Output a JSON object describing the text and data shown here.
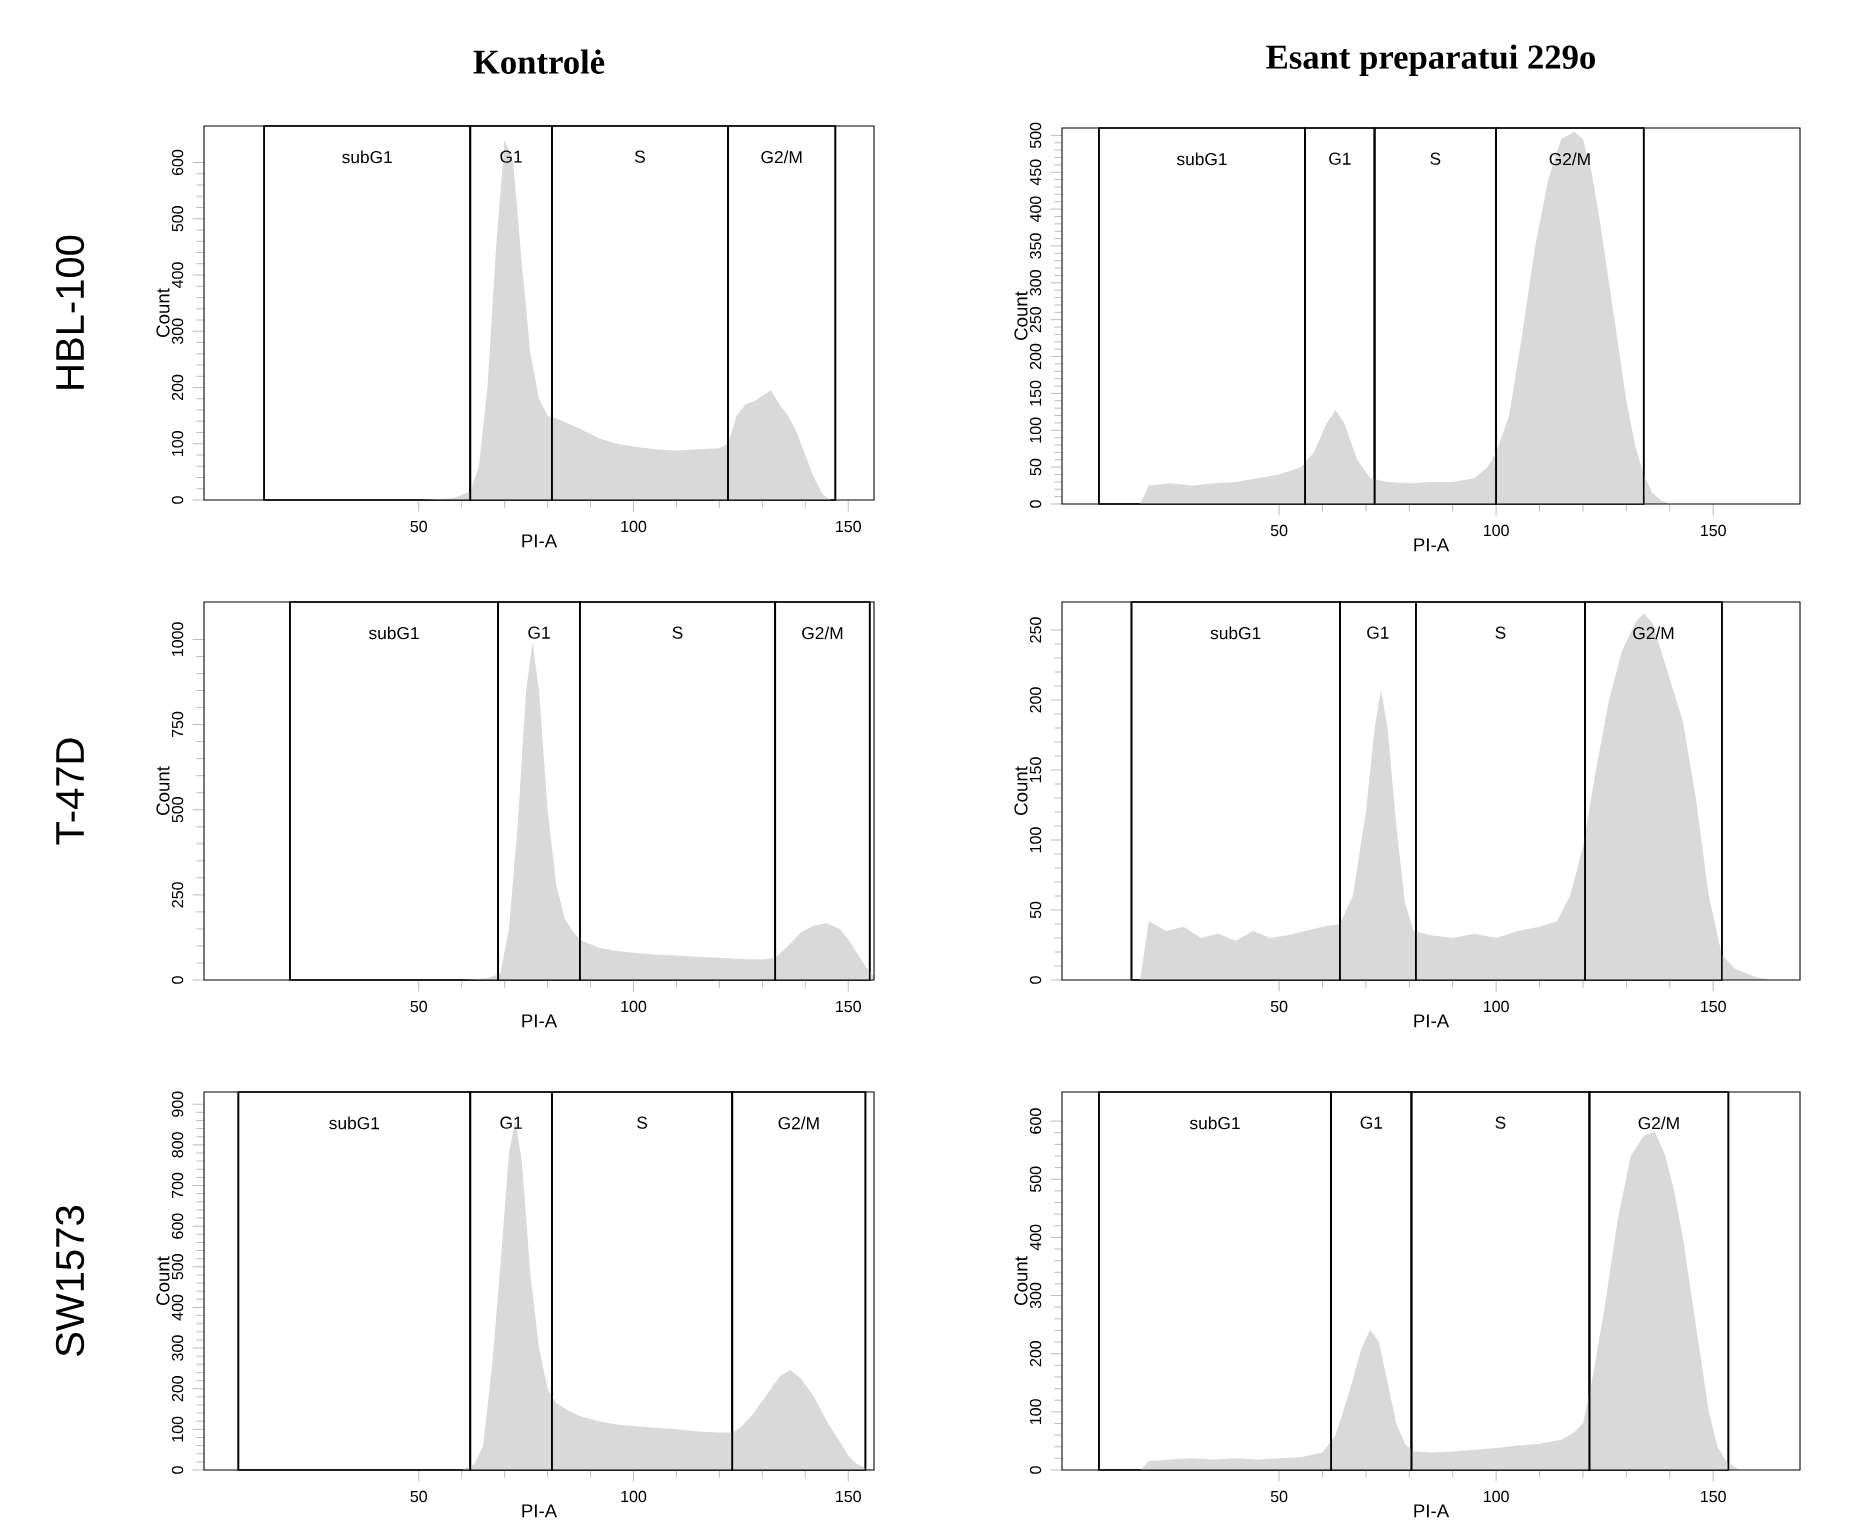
{
  "chart_data": [
    {
      "type": "area",
      "title": "Kontrolė",
      "annotations": [
        "HBL-100"
      ],
      "xlabel": "PI-A",
      "ylabel": "Count",
      "color": "#d9d9d9",
      "xlim": [
        0,
        156
      ],
      "ylim": [
        0,
        665
      ],
      "xticks": [
        50,
        100,
        150
      ],
      "yticks": [
        0,
        100,
        200,
        300,
        400,
        500,
        600
      ],
      "x": [
        50,
        58,
        62,
        64,
        66,
        68,
        70,
        72,
        74,
        76,
        78,
        80,
        82,
        85,
        88,
        92,
        96,
        100,
        105,
        110,
        115,
        120,
        122,
        124,
        126,
        128,
        130,
        132,
        134,
        136,
        138,
        140,
        142,
        144,
        146
      ],
      "values": [
        0,
        3,
        15,
        60,
        200,
        450,
        640,
        600,
        420,
        260,
        180,
        150,
        145,
        135,
        125,
        110,
        100,
        95,
        90,
        88,
        90,
        92,
        100,
        150,
        170,
        175,
        185,
        195,
        170,
        150,
        120,
        80,
        40,
        10,
        0
      ],
      "bands": [
        {
          "axis": "x",
          "from": 14,
          "to": 62,
          "label": "subG1",
          "color": "#ffffff"
        },
        {
          "axis": "x",
          "from": 62,
          "to": 81,
          "label": "G1",
          "color": "#ffffff"
        },
        {
          "axis": "x",
          "from": 81,
          "to": 122,
          "label": "S",
          "color": "#ffffff"
        },
        {
          "axis": "x",
          "from": 122,
          "to": 147,
          "label": "G2/M",
          "color": "#ffffff"
        }
      ]
    },
    {
      "type": "area",
      "title": "Esant preparatui 229o",
      "xlabel": "PI-A",
      "ylabel": "Count",
      "color": "#d9d9d9",
      "xlim": [
        0,
        170
      ],
      "ylim": [
        0,
        510
      ],
      "xticks": [
        50,
        100,
        150
      ],
      "yticks": [
        0,
        50,
        100,
        150,
        200,
        250,
        300,
        350,
        400,
        450,
        500
      ],
      "x": [
        18,
        20,
        25,
        30,
        35,
        40,
        45,
        50,
        55,
        58,
        61,
        63,
        65,
        68,
        71,
        75,
        80,
        85,
        90,
        95,
        98,
        100,
        103,
        106,
        109,
        112,
        115,
        118,
        120,
        122,
        124,
        126,
        128,
        130,
        132,
        134,
        136,
        138,
        140
      ],
      "values": [
        0,
        25,
        28,
        25,
        28,
        30,
        35,
        40,
        50,
        70,
        110,
        127,
        110,
        60,
        35,
        30,
        28,
        30,
        30,
        35,
        50,
        70,
        120,
        230,
        350,
        440,
        495,
        505,
        495,
        450,
        380,
        300,
        220,
        140,
        80,
        40,
        15,
        5,
        0
      ],
      "bands": [
        {
          "axis": "x",
          "from": 8.5,
          "to": 56,
          "label": "subG1"
        },
        {
          "axis": "x",
          "from": 56,
          "to": 72,
          "label": "G1"
        },
        {
          "axis": "x",
          "from": 72,
          "to": 100,
          "label": "S"
        },
        {
          "axis": "x",
          "from": 100,
          "to": 134,
          "label": "G2/M"
        }
      ]
    },
    {
      "type": "area",
      "annotations": [
        "T-47D"
      ],
      "xlabel": "PI-A",
      "ylabel": "Count",
      "color": "#d9d9d9",
      "xlim": [
        0,
        156
      ],
      "ylim": [
        0,
        1110
      ],
      "xticks": [
        50,
        100,
        150
      ],
      "yticks": [
        0,
        250,
        500,
        750,
        1000
      ],
      "x": [
        60,
        66,
        69,
        71,
        73,
        75,
        76.5,
        78,
        80,
        82,
        84,
        86,
        88,
        92,
        96,
        100,
        105,
        110,
        115,
        120,
        125,
        130,
        133,
        136,
        139,
        142,
        145,
        148,
        150,
        152,
        154,
        156
      ],
      "values": [
        0,
        5,
        20,
        150,
        450,
        850,
        990,
        850,
        500,
        280,
        180,
        140,
        115,
        95,
        85,
        80,
        75,
        72,
        68,
        65,
        62,
        60,
        65,
        100,
        140,
        160,
        167,
        150,
        120,
        80,
        40,
        10
      ],
      "bands": [
        {
          "axis": "x",
          "from": 20,
          "to": 68.5,
          "label": "subG1"
        },
        {
          "axis": "x",
          "from": 68.5,
          "to": 87.5,
          "label": "G1"
        },
        {
          "axis": "x",
          "from": 87.5,
          "to": 133,
          "label": "S"
        },
        {
          "axis": "x",
          "from": 133,
          "to": 155,
          "label": "G2/M"
        }
      ]
    },
    {
      "type": "area",
      "xlabel": "PI-A",
      "ylabel": "Count",
      "color": "#d9d9d9",
      "xlim": [
        0,
        170
      ],
      "ylim": [
        0,
        270
      ],
      "xticks": [
        50,
        100,
        150
      ],
      "yticks": [
        0,
        50,
        100,
        150,
        200,
        250
      ],
      "x": [
        18,
        20,
        24,
        28,
        32,
        36,
        40,
        44,
        48,
        52,
        56,
        60,
        64,
        67,
        70,
        72,
        73.5,
        75,
        77,
        79,
        81,
        85,
        90,
        95,
        100,
        105,
        110,
        114,
        117,
        120,
        123,
        126,
        129,
        132,
        134,
        136,
        138,
        140,
        143,
        146,
        149,
        152,
        155,
        160,
        163
      ],
      "values": [
        0,
        42,
        35,
        38,
        30,
        33,
        28,
        35,
        30,
        32,
        35,
        38,
        40,
        60,
        120,
        180,
        207,
        180,
        110,
        55,
        35,
        32,
        30,
        33,
        30,
        35,
        38,
        42,
        60,
        95,
        150,
        200,
        235,
        255,
        262,
        255,
        235,
        215,
        185,
        130,
        60,
        18,
        8,
        2,
        0
      ],
      "bands": [
        {
          "axis": "x",
          "from": 16,
          "to": 64,
          "label": "subG1"
        },
        {
          "axis": "x",
          "from": 64,
          "to": 81.5,
          "label": "G1"
        },
        {
          "axis": "x",
          "from": 81.5,
          "to": 120.5,
          "label": "S"
        },
        {
          "axis": "x",
          "from": 120.5,
          "to": 152,
          "label": "G2/M"
        }
      ]
    },
    {
      "type": "area",
      "annotations": [
        "SW1573"
      ],
      "xlabel": "PI-A",
      "ylabel": "Count",
      "color": "#d9d9d9",
      "xlim": [
        0,
        156
      ],
      "ylim": [
        0,
        930
      ],
      "xticks": [
        50,
        100,
        150
      ],
      "yticks": [
        0,
        100,
        200,
        300,
        400,
        500,
        600,
        700,
        800,
        900
      ],
      "x": [
        60,
        63,
        65,
        67,
        69,
        71,
        72.5,
        74,
        76,
        78,
        80,
        82,
        85,
        88,
        92,
        96,
        100,
        105,
        110,
        115,
        120,
        123,
        125,
        128,
        131,
        134,
        136.5,
        139,
        142,
        145,
        148,
        150,
        152,
        154,
        156
      ],
      "values": [
        0,
        15,
        60,
        250,
        500,
        780,
        860,
        760,
        480,
        300,
        200,
        165,
        145,
        131,
        120,
        112,
        108,
        104,
        100,
        95,
        92,
        92,
        105,
        140,
        185,
        230,
        246,
        225,
        180,
        120,
        70,
        35,
        15,
        5,
        0
      ],
      "bands": [
        {
          "axis": "x",
          "from": 8,
          "to": 62,
          "label": "subG1"
        },
        {
          "axis": "x",
          "from": 62,
          "to": 81,
          "label": "G1"
        },
        {
          "axis": "x",
          "from": 81,
          "to": 123,
          "label": "S"
        },
        {
          "axis": "x",
          "from": 123,
          "to": 154,
          "label": "G2/M"
        }
      ]
    },
    {
      "type": "area",
      "xlabel": "PI-A",
      "ylabel": "Count",
      "color": "#d9d9d9",
      "xlim": [
        0,
        170
      ],
      "ylim": [
        0,
        650
      ],
      "xticks": [
        50,
        100,
        150
      ],
      "yticks": [
        0,
        100,
        200,
        300,
        400,
        500,
        600
      ],
      "x": [
        18,
        20,
        25,
        30,
        35,
        40,
        45,
        50,
        55,
        60,
        63,
        66,
        69,
        71,
        73,
        75,
        77,
        79,
        81,
        85,
        90,
        95,
        100,
        105,
        110,
        115,
        118,
        120,
        122,
        125,
        128,
        131,
        134,
        136.5,
        139,
        141,
        143,
        145,
        147,
        149,
        151,
        153,
        156
      ],
      "values": [
        0,
        15,
        18,
        20,
        18,
        20,
        18,
        20,
        22,
        30,
        60,
        130,
        210,
        241,
        220,
        150,
        80,
        45,
        32,
        30,
        32,
        35,
        38,
        42,
        45,
        52,
        65,
        80,
        150,
        280,
        430,
        540,
        575,
        582,
        540,
        480,
        400,
        300,
        200,
        100,
        40,
        15,
        0
      ],
      "bands": [
        {
          "axis": "x",
          "from": 8.5,
          "to": 62,
          "label": "subG1"
        },
        {
          "axis": "x",
          "from": 62,
          "to": 80.5,
          "label": "G1"
        },
        {
          "axis": "x",
          "from": 80.5,
          "to": 121.5,
          "label": "S"
        },
        {
          "axis": "x",
          "from": 121.5,
          "to": 153.5,
          "label": "G2/M"
        }
      ]
    }
  ]
}
